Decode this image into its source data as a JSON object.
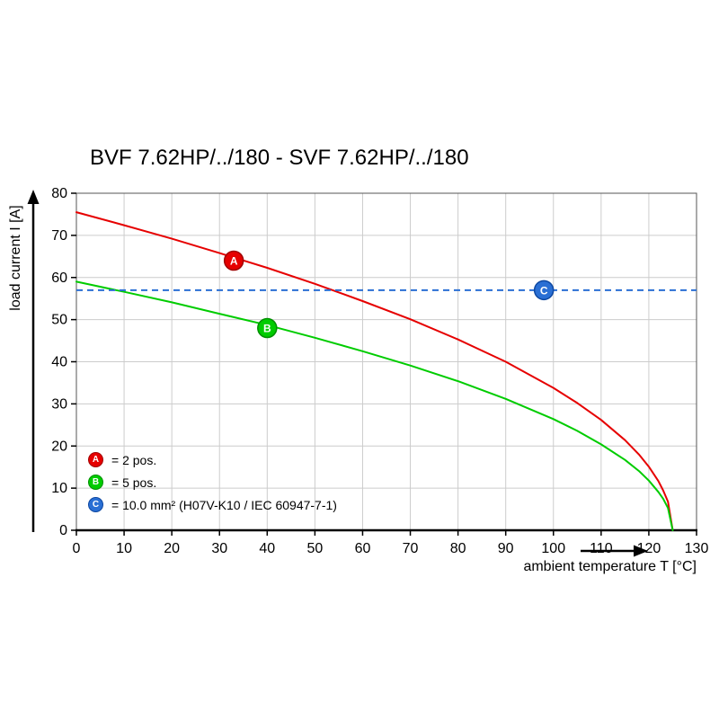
{
  "chart_data": {
    "type": "line",
    "title": "BVF 7.62HP/../180 - SVF 7.62HP/../180",
    "xlabel": "ambient temperature T [°C]",
    "ylabel": "load current I [A]",
    "xlim": [
      0,
      130
    ],
    "ylim": [
      0,
      80
    ],
    "xticks": [
      0,
      10,
      20,
      30,
      40,
      50,
      60,
      70,
      80,
      90,
      100,
      110,
      120,
      130
    ],
    "yticks": [
      0,
      10,
      20,
      30,
      40,
      50,
      60,
      70,
      80
    ],
    "grid": true,
    "legend_position": "bottom-left-inside",
    "series": [
      {
        "name": "A",
        "desc": "2 pos.",
        "color": "#e60000",
        "style": "solid",
        "points": [
          [
            0,
            75.5
          ],
          [
            10,
            72.4
          ],
          [
            20,
            69.2
          ],
          [
            30,
            65.8
          ],
          [
            40,
            62.3
          ],
          [
            50,
            58.5
          ],
          [
            60,
            54.4
          ],
          [
            70,
            50.1
          ],
          [
            80,
            45.3
          ],
          [
            90,
            40.0
          ],
          [
            100,
            33.8
          ],
          [
            105,
            30.2
          ],
          [
            110,
            26.2
          ],
          [
            115,
            21.4
          ],
          [
            118,
            17.9
          ],
          [
            120,
            15.1
          ],
          [
            122,
            11.7
          ],
          [
            123,
            9.5
          ],
          [
            124,
            6.8
          ],
          [
            125,
            0
          ]
        ]
      },
      {
        "name": "B",
        "desc": "5 pos.",
        "color": "#00cc00",
        "style": "solid",
        "points": [
          [
            0,
            59.0
          ],
          [
            10,
            56.6
          ],
          [
            20,
            54.1
          ],
          [
            30,
            51.4
          ],
          [
            40,
            48.7
          ],
          [
            50,
            45.7
          ],
          [
            60,
            42.5
          ],
          [
            70,
            39.1
          ],
          [
            80,
            35.4
          ],
          [
            90,
            31.2
          ],
          [
            100,
            26.4
          ],
          [
            105,
            23.6
          ],
          [
            110,
            20.4
          ],
          [
            115,
            16.7
          ],
          [
            118,
            14.0
          ],
          [
            120,
            11.8
          ],
          [
            122,
            9.1
          ],
          [
            123,
            7.5
          ],
          [
            124,
            5.3
          ],
          [
            125,
            0
          ]
        ]
      },
      {
        "name": "C",
        "desc": "10.0 mm² (H07V-K10 / IEC 60947-7-1)",
        "color": "#2a6fd4",
        "style": "dashed",
        "value": 57
      }
    ],
    "markers": [
      {
        "letter": "A",
        "x": 33,
        "y": 64,
        "fill": "#e60000",
        "stroke": "#a00000"
      },
      {
        "letter": "B",
        "x": 40,
        "y": 48,
        "fill": "#00cc00",
        "stroke": "#008f00"
      },
      {
        "letter": "C",
        "x": 98,
        "y": 57,
        "fill": "#2a6fd4",
        "stroke": "#0d47a1"
      }
    ],
    "legend": [
      {
        "letter": "A",
        "label": "= 2 pos.",
        "color": "#e60000",
        "border": "#a00000"
      },
      {
        "letter": "B",
        "label": "= 5 pos.",
        "color": "#00cc00",
        "border": "#008f00"
      },
      {
        "letter": "C",
        "label": "= 10.0 mm² (H07V-K10 / IEC 60947-7-1)",
        "color": "#2a6fd4",
        "border": "#0d47a1"
      }
    ],
    "colors": {
      "grid": "#cccccc",
      "frame": "#555555",
      "axis": "#000000"
    }
  }
}
